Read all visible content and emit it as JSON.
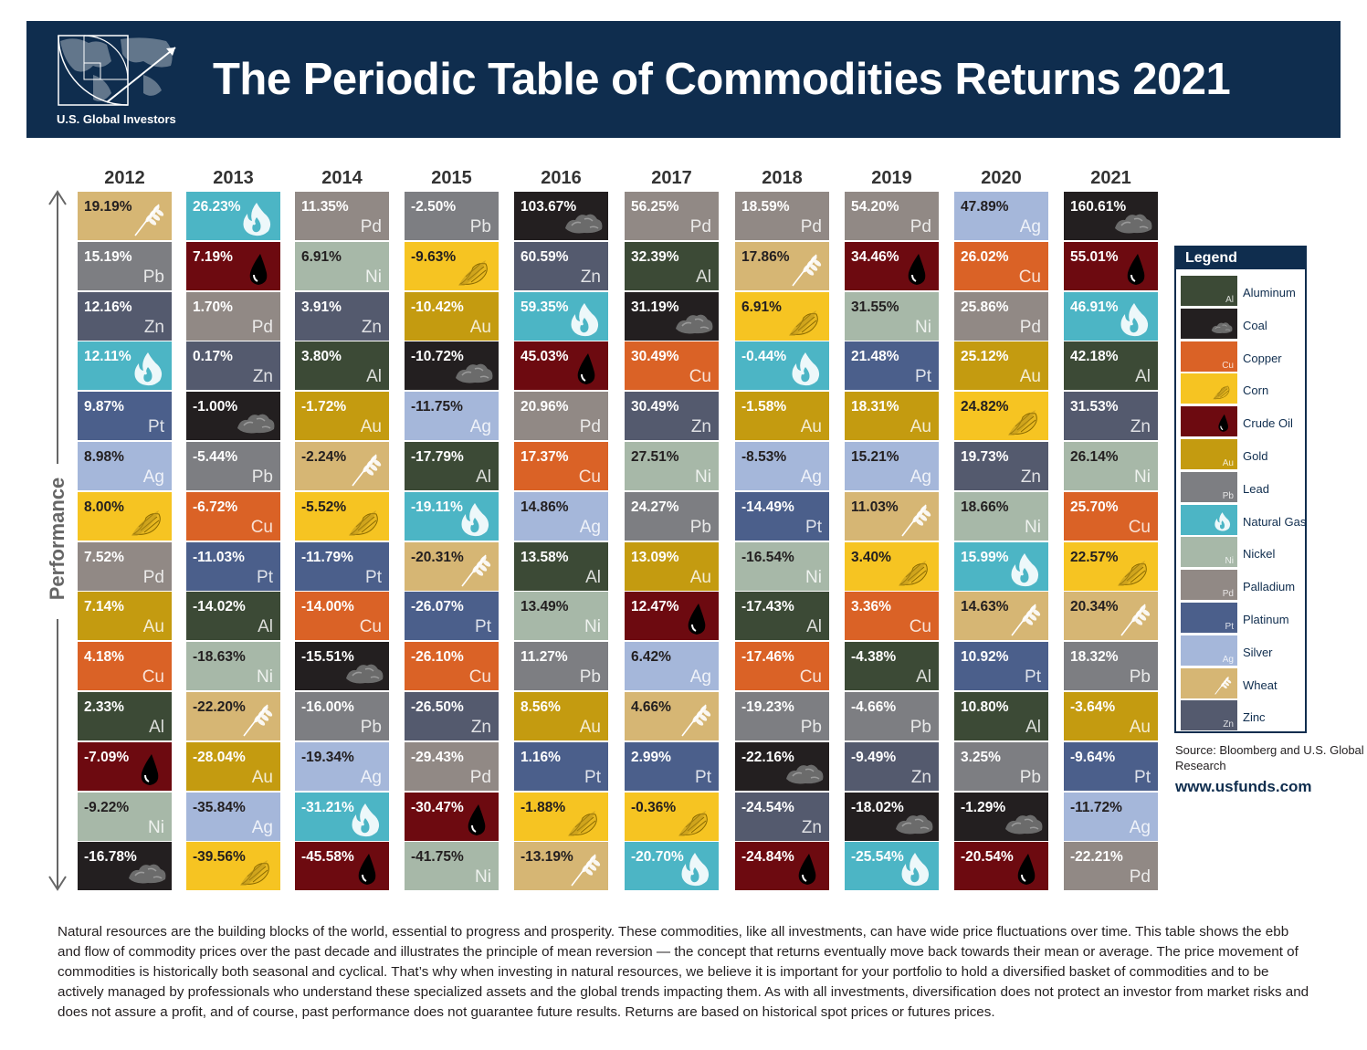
{
  "header": {
    "title": "The Periodic Table of Commodities Returns 2021",
    "brand": "U.S. Global Investors"
  },
  "axis_label": "Performance",
  "commodities": {
    "Aluminum": {
      "symbol": "Al",
      "color": "#3c4a36",
      "icon": "none"
    },
    "Coal": {
      "symbol": "",
      "color": "#231f20",
      "icon": "coal-icon"
    },
    "Copper": {
      "symbol": "Cu",
      "color": "#da6226",
      "icon": "none"
    },
    "Corn": {
      "symbol": "",
      "color": "#f6c422",
      "icon": "corn-icon"
    },
    "Crude Oil": {
      "symbol": "",
      "color": "#6d0a10",
      "icon": "oil-drop-icon"
    },
    "Gold": {
      "symbol": "Au",
      "color": "#c49b10",
      "icon": "none"
    },
    "Lead": {
      "symbol": "Pb",
      "color": "#7d7e82",
      "icon": "none"
    },
    "Natural Gas": {
      "symbol": "",
      "color": "#4cb5c5",
      "icon": "flame-icon"
    },
    "Nickel": {
      "symbol": "Ni",
      "color": "#a7b8a8",
      "icon": "none"
    },
    "Palladium": {
      "symbol": "Pd",
      "color": "#918985",
      "icon": "none"
    },
    "Platinum": {
      "symbol": "Pt",
      "color": "#4b5f8b",
      "icon": "none"
    },
    "Silver": {
      "symbol": "Ag",
      "color": "#a5b7da",
      "icon": "none"
    },
    "Wheat": {
      "symbol": "",
      "color": "#d6b674",
      "icon": "wheat-icon"
    },
    "Zinc": {
      "symbol": "Zn",
      "color": "#545a6e",
      "icon": "none"
    }
  },
  "legend": {
    "title": "Legend",
    "items": [
      "Aluminum",
      "Coal",
      "Copper",
      "Corn",
      "Crude Oil",
      "Gold",
      "Lead",
      "Natural Gas",
      "Nickel",
      "Palladium",
      "Platinum",
      "Silver",
      "Wheat",
      "Zinc"
    ]
  },
  "source": "Source: Bloomberg and U.S. Global Research",
  "website": "www.usfunds.com",
  "description": "Natural resources are the building blocks of the world, essential to progress and prosperity. These commodities, like all investments, can have wide price fluctuations over time. This table shows the ebb and flow of commodity prices over the past decade and illustrates the principle of mean reversion — the concept that returns eventually move back towards their mean or average. The price movement of commodities is historically both seasonal and cyclical. That’s why when investing in natural resources, we believe it is important for your portfolio to hold a diversified basket of commodities and to be actively managed by professionals who understand these specialized assets and the global trends impacting them. As with all investments, diversification does not protect an investor from market risks and does not assure a profit, and of course, past performance does not guarantee future results. Returns are based on historical spot prices or futures prices.",
  "chart_data": {
    "type": "table",
    "title": "The Periodic Table of Commodities Returns 2021",
    "ylabel": "Performance",
    "unit": "%",
    "years": [
      {
        "year": "2012",
        "cells": [
          {
            "commodity": "Wheat",
            "value": "19.19%"
          },
          {
            "commodity": "Lead",
            "value": "15.19%"
          },
          {
            "commodity": "Zinc",
            "value": "12.16%"
          },
          {
            "commodity": "Natural Gas",
            "value": "12.11%"
          },
          {
            "commodity": "Platinum",
            "value": "9.87%"
          },
          {
            "commodity": "Silver",
            "value": "8.98%"
          },
          {
            "commodity": "Corn",
            "value": "8.00%"
          },
          {
            "commodity": "Palladium",
            "value": "7.52%"
          },
          {
            "commodity": "Gold",
            "value": "7.14%"
          },
          {
            "commodity": "Copper",
            "value": "4.18%"
          },
          {
            "commodity": "Aluminum",
            "value": "2.33%"
          },
          {
            "commodity": "Crude Oil",
            "value": "-7.09%"
          },
          {
            "commodity": "Nickel",
            "value": "-9.22%"
          },
          {
            "commodity": "Coal",
            "value": "-16.78%"
          }
        ]
      },
      {
        "year": "2013",
        "cells": [
          {
            "commodity": "Natural Gas",
            "value": "26.23%"
          },
          {
            "commodity": "Crude Oil",
            "value": "7.19%"
          },
          {
            "commodity": "Palladium",
            "value": "1.70%"
          },
          {
            "commodity": "Zinc",
            "value": "0.17%"
          },
          {
            "commodity": "Coal",
            "value": "-1.00%"
          },
          {
            "commodity": "Lead",
            "value": "-5.44%"
          },
          {
            "commodity": "Copper",
            "value": "-6.72%"
          },
          {
            "commodity": "Platinum",
            "value": "-11.03%"
          },
          {
            "commodity": "Aluminum",
            "value": "-14.02%"
          },
          {
            "commodity": "Nickel",
            "value": "-18.63%"
          },
          {
            "commodity": "Wheat",
            "value": "-22.20%"
          },
          {
            "commodity": "Gold",
            "value": "-28.04%"
          },
          {
            "commodity": "Silver",
            "value": "-35.84%"
          },
          {
            "commodity": "Corn",
            "value": "-39.56%"
          }
        ]
      },
      {
        "year": "2014",
        "cells": [
          {
            "commodity": "Palladium",
            "value": "11.35%"
          },
          {
            "commodity": "Nickel",
            "value": "6.91%"
          },
          {
            "commodity": "Zinc",
            "value": "3.91%"
          },
          {
            "commodity": "Aluminum",
            "value": "3.80%"
          },
          {
            "commodity": "Gold",
            "value": "-1.72%"
          },
          {
            "commodity": "Wheat",
            "value": "-2.24%"
          },
          {
            "commodity": "Corn",
            "value": "-5.52%"
          },
          {
            "commodity": "Platinum",
            "value": "-11.79%"
          },
          {
            "commodity": "Copper",
            "value": "-14.00%"
          },
          {
            "commodity": "Coal",
            "value": "-15.51%"
          },
          {
            "commodity": "Lead",
            "value": "-16.00%"
          },
          {
            "commodity": "Silver",
            "value": "-19.34%"
          },
          {
            "commodity": "Natural Gas",
            "value": "-31.21%"
          },
          {
            "commodity": "Crude Oil",
            "value": "-45.58%"
          }
        ]
      },
      {
        "year": "2015",
        "cells": [
          {
            "commodity": "Lead",
            "value": "-2.50%"
          },
          {
            "commodity": "Corn",
            "value": "-9.63%"
          },
          {
            "commodity": "Gold",
            "value": "-10.42%"
          },
          {
            "commodity": "Coal",
            "value": "-10.72%"
          },
          {
            "commodity": "Silver",
            "value": "-11.75%"
          },
          {
            "commodity": "Aluminum",
            "value": "-17.79%"
          },
          {
            "commodity": "Natural Gas",
            "value": "-19.11%"
          },
          {
            "commodity": "Wheat",
            "value": "-20.31%"
          },
          {
            "commodity": "Platinum",
            "value": "-26.07%"
          },
          {
            "commodity": "Copper",
            "value": "-26.10%"
          },
          {
            "commodity": "Zinc",
            "value": "-26.50%"
          },
          {
            "commodity": "Palladium",
            "value": "-29.43%"
          },
          {
            "commodity": "Crude Oil",
            "value": "-30.47%"
          },
          {
            "commodity": "Nickel",
            "value": "-41.75%"
          }
        ]
      },
      {
        "year": "2016",
        "cells": [
          {
            "commodity": "Coal",
            "value": "103.67%"
          },
          {
            "commodity": "Zinc",
            "value": "60.59%"
          },
          {
            "commodity": "Natural Gas",
            "value": "59.35%"
          },
          {
            "commodity": "Crude Oil",
            "value": "45.03%"
          },
          {
            "commodity": "Palladium",
            "value": "20.96%"
          },
          {
            "commodity": "Copper",
            "value": "17.37%"
          },
          {
            "commodity": "Silver",
            "value": "14.86%"
          },
          {
            "commodity": "Aluminum",
            "value": "13.58%"
          },
          {
            "commodity": "Nickel",
            "value": "13.49%"
          },
          {
            "commodity": "Lead",
            "value": "11.27%"
          },
          {
            "commodity": "Gold",
            "value": "8.56%"
          },
          {
            "commodity": "Platinum",
            "value": "1.16%"
          },
          {
            "commodity": "Corn",
            "value": "-1.88%"
          },
          {
            "commodity": "Wheat",
            "value": "-13.19%"
          }
        ]
      },
      {
        "year": "2017",
        "cells": [
          {
            "commodity": "Palladium",
            "value": "56.25%"
          },
          {
            "commodity": "Aluminum",
            "value": "32.39%"
          },
          {
            "commodity": "Coal",
            "value": "31.19%"
          },
          {
            "commodity": "Copper",
            "value": "30.49%"
          },
          {
            "commodity": "Zinc",
            "value": "30.49%"
          },
          {
            "commodity": "Nickel",
            "value": "27.51%"
          },
          {
            "commodity": "Lead",
            "value": "24.27%"
          },
          {
            "commodity": "Gold",
            "value": "13.09%"
          },
          {
            "commodity": "Crude Oil",
            "value": "12.47%"
          },
          {
            "commodity": "Silver",
            "value": "6.42%"
          },
          {
            "commodity": "Wheat",
            "value": "4.66%"
          },
          {
            "commodity": "Platinum",
            "value": "2.99%"
          },
          {
            "commodity": "Corn",
            "value": "-0.36%"
          },
          {
            "commodity": "Natural Gas",
            "value": "-20.70%"
          }
        ]
      },
      {
        "year": "2018",
        "cells": [
          {
            "commodity": "Palladium",
            "value": "18.59%"
          },
          {
            "commodity": "Wheat",
            "value": "17.86%"
          },
          {
            "commodity": "Corn",
            "value": "6.91%"
          },
          {
            "commodity": "Natural Gas",
            "value": "-0.44%"
          },
          {
            "commodity": "Gold",
            "value": "-1.58%"
          },
          {
            "commodity": "Silver",
            "value": "-8.53%"
          },
          {
            "commodity": "Platinum",
            "value": "-14.49%"
          },
          {
            "commodity": "Nickel",
            "value": "-16.54%"
          },
          {
            "commodity": "Aluminum",
            "value": "-17.43%"
          },
          {
            "commodity": "Copper",
            "value": "-17.46%"
          },
          {
            "commodity": "Lead",
            "value": "-19.23%"
          },
          {
            "commodity": "Coal",
            "value": "-22.16%"
          },
          {
            "commodity": "Zinc",
            "value": "-24.54%"
          },
          {
            "commodity": "Crude Oil",
            "value": "-24.84%"
          }
        ]
      },
      {
        "year": "2019",
        "cells": [
          {
            "commodity": "Palladium",
            "value": "54.20%"
          },
          {
            "commodity": "Crude Oil",
            "value": "34.46%"
          },
          {
            "commodity": "Nickel",
            "value": "31.55%"
          },
          {
            "commodity": "Platinum",
            "value": "21.48%"
          },
          {
            "commodity": "Gold",
            "value": "18.31%"
          },
          {
            "commodity": "Silver",
            "value": "15.21%"
          },
          {
            "commodity": "Wheat",
            "value": "11.03%"
          },
          {
            "commodity": "Corn",
            "value": "3.40%"
          },
          {
            "commodity": "Copper",
            "value": "3.36%"
          },
          {
            "commodity": "Aluminum",
            "value": "-4.38%"
          },
          {
            "commodity": "Lead",
            "value": "-4.66%"
          },
          {
            "commodity": "Zinc",
            "value": "-9.49%"
          },
          {
            "commodity": "Coal",
            "value": "-18.02%"
          },
          {
            "commodity": "Natural Gas",
            "value": "-25.54%"
          }
        ]
      },
      {
        "year": "2020",
        "cells": [
          {
            "commodity": "Silver",
            "value": "47.89%"
          },
          {
            "commodity": "Copper",
            "value": "26.02%"
          },
          {
            "commodity": "Palladium",
            "value": "25.86%"
          },
          {
            "commodity": "Gold",
            "value": "25.12%"
          },
          {
            "commodity": "Corn",
            "value": "24.82%"
          },
          {
            "commodity": "Zinc",
            "value": "19.73%"
          },
          {
            "commodity": "Nickel",
            "value": "18.66%"
          },
          {
            "commodity": "Natural Gas",
            "value": "15.99%"
          },
          {
            "commodity": "Wheat",
            "value": "14.63%"
          },
          {
            "commodity": "Platinum",
            "value": "10.92%"
          },
          {
            "commodity": "Aluminum",
            "value": "10.80%"
          },
          {
            "commodity": "Lead",
            "value": "3.25%"
          },
          {
            "commodity": "Coal",
            "value": "-1.29%"
          },
          {
            "commodity": "Crude Oil",
            "value": "-20.54%"
          }
        ]
      },
      {
        "year": "2021",
        "cells": [
          {
            "commodity": "Coal",
            "value": "160.61%"
          },
          {
            "commodity": "Crude Oil",
            "value": "55.01%"
          },
          {
            "commodity": "Natural Gas",
            "value": "46.91%"
          },
          {
            "commodity": "Aluminum",
            "value": "42.18%"
          },
          {
            "commodity": "Zinc",
            "value": "31.53%"
          },
          {
            "commodity": "Nickel",
            "value": "26.14%"
          },
          {
            "commodity": "Copper",
            "value": "25.70%"
          },
          {
            "commodity": "Corn",
            "value": "22.57%"
          },
          {
            "commodity": "Wheat",
            "value": "20.34%"
          },
          {
            "commodity": "Lead",
            "value": "18.32%"
          },
          {
            "commodity": "Gold",
            "value": "-3.64%"
          },
          {
            "commodity": "Platinum",
            "value": "-9.64%"
          },
          {
            "commodity": "Silver",
            "value": "-11.72%"
          },
          {
            "commodity": "Palladium",
            "value": "-22.21%"
          }
        ]
      }
    ]
  }
}
